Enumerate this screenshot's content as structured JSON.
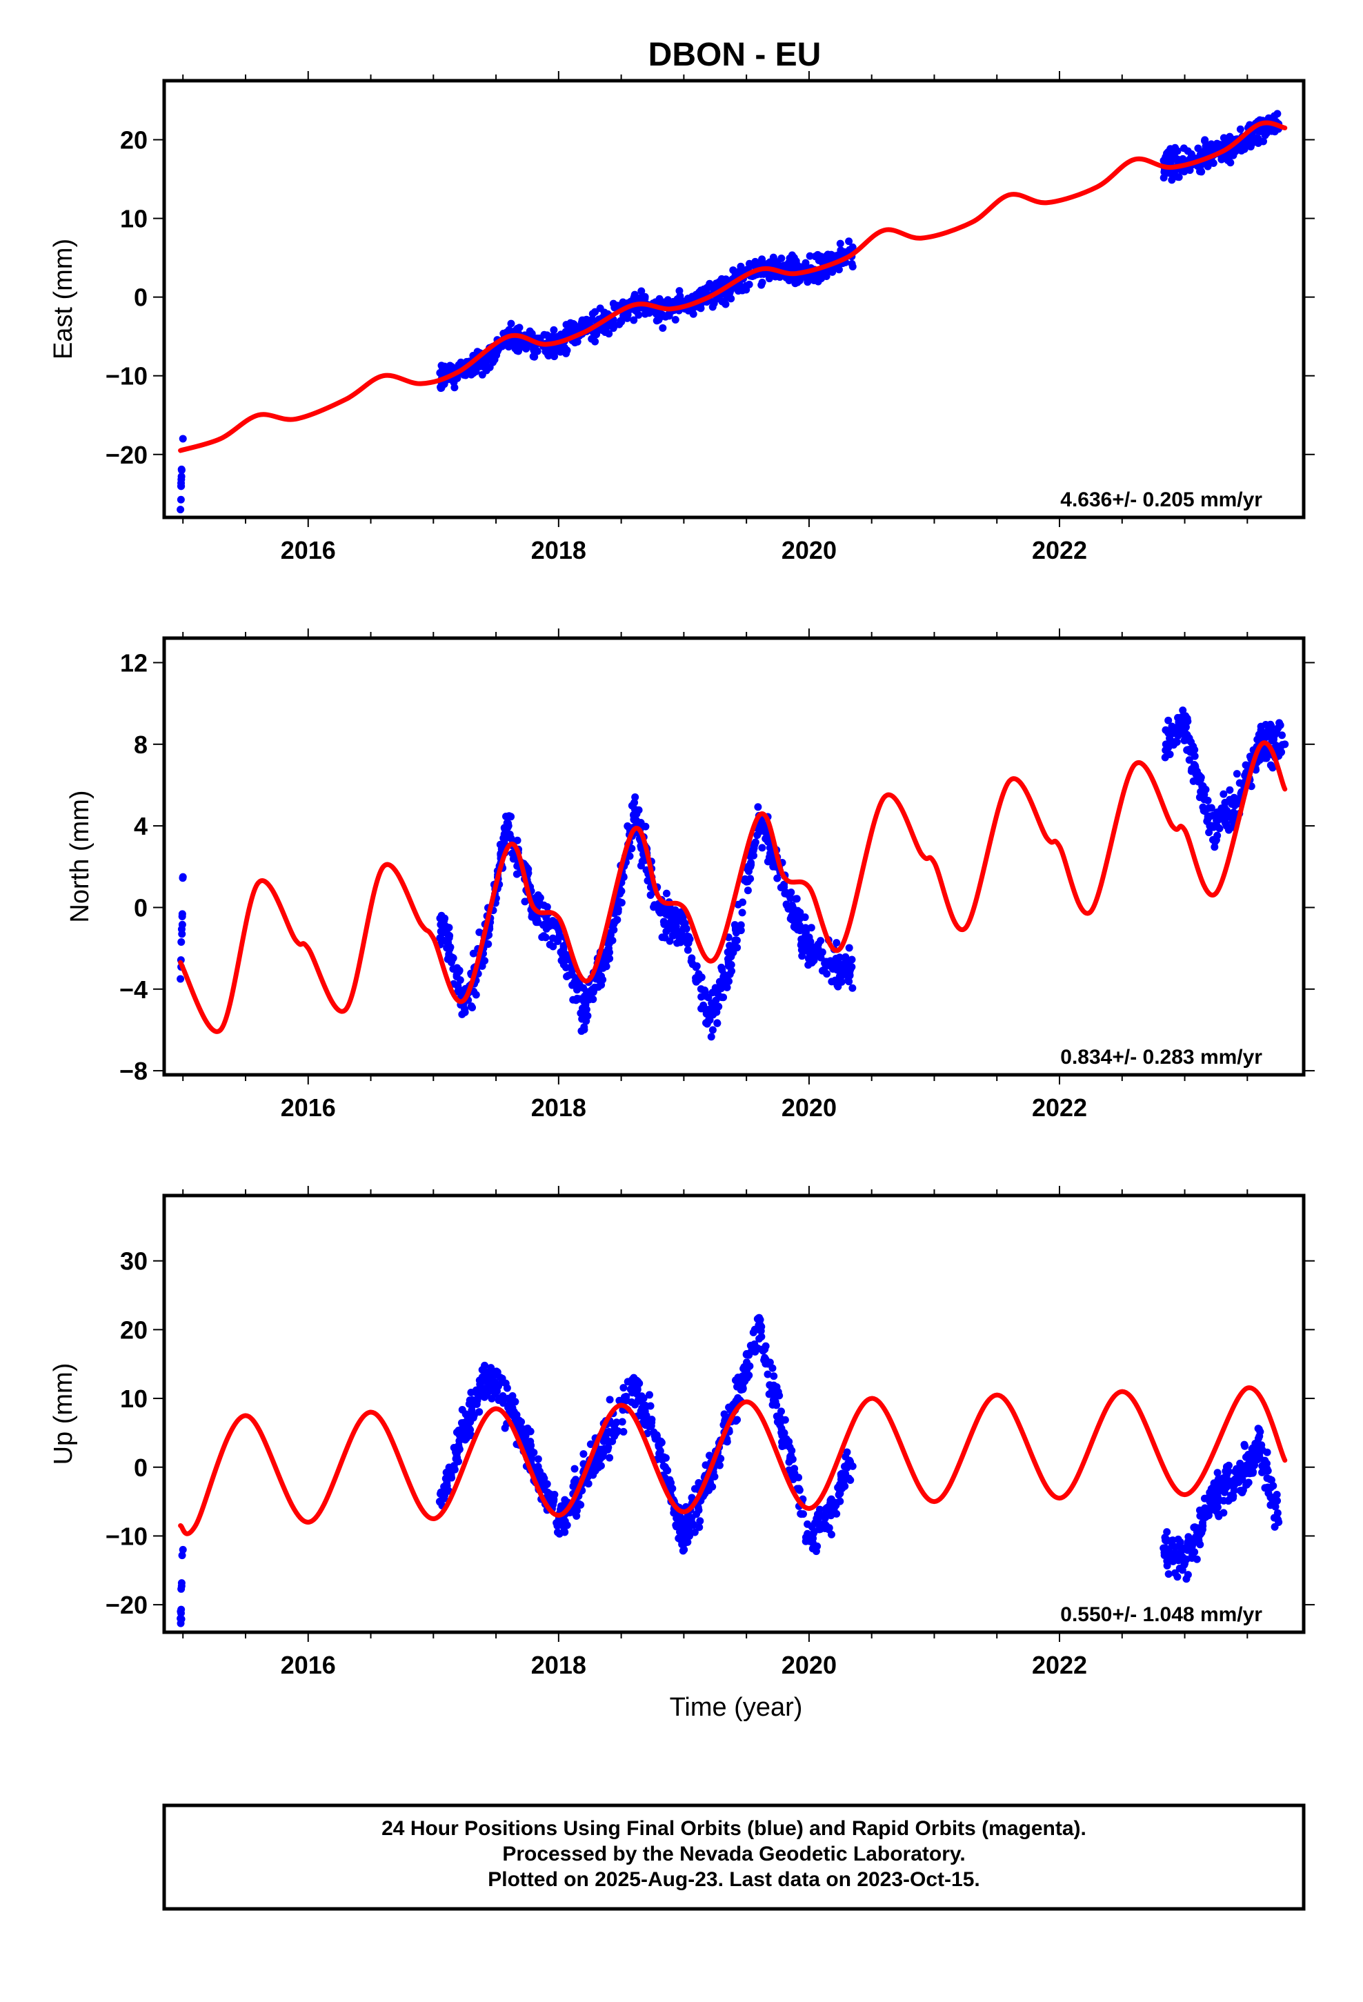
{
  "title": "DBON - EU",
  "xlabel": "Time (year)",
  "footer": [
    "24 Hour Positions Using Final Orbits (blue) and Rapid Orbits (magenta).",
    "Processed by the Nevada Geodetic Laboratory.",
    "Plotted on 2025-Aug-23. Last data on 2023-Oct-15."
  ],
  "colors": {
    "final_orbits": "#0000ff",
    "rapid_orbits": "#ff00ff",
    "model": "#ff0000"
  },
  "chart_data": [
    {
      "type": "scatter",
      "ylabel": "East (mm)",
      "rate_text": "4.636+/- 0.205 mm/yr",
      "xlim": [
        2014.85,
        2023.95
      ],
      "ylim": [
        -28,
        27.5
      ],
      "xticks": [
        2016,
        2018,
        2020,
        2022
      ],
      "yticks": [
        -20,
        -10,
        0,
        10,
        20
      ],
      "series": [
        {
          "kind": "points",
          "color": "#0000ff",
          "x": [
            2014.98,
            2014.99,
            2015.0,
            2017.1,
            2017.2,
            2017.3,
            2017.4,
            2017.5,
            2017.6,
            2017.7,
            2017.8,
            2017.9,
            2018.0,
            2018.2,
            2018.4,
            2018.6,
            2018.8,
            2019.0,
            2019.2,
            2019.4,
            2019.6,
            2019.8,
            2020.0,
            2020.2,
            2020.3,
            2022.85,
            2023.0,
            2023.2,
            2023.4,
            2023.6,
            2023.75
          ],
          "y": [
            -27,
            -22,
            -18,
            -10,
            -9.5,
            -9,
            -8,
            -6.5,
            -5,
            -5.5,
            -6,
            -6,
            -5.5,
            -4,
            -3,
            -1,
            -1.5,
            -1,
            0,
            1.5,
            3.5,
            4,
            3,
            4.5,
            5.5,
            17,
            17,
            18,
            19,
            21.5,
            22
          ]
        },
        {
          "kind": "line",
          "color": "#ff0000",
          "x": [
            2014.98,
            2015.3,
            2015.6,
            2015.9,
            2016.3,
            2016.6,
            2016.9,
            2017.2,
            2017.6,
            2017.9,
            2018.2,
            2018.6,
            2018.9,
            2019.2,
            2019.6,
            2019.9,
            2020.3,
            2020.6,
            2020.9,
            2021.3,
            2021.6,
            2021.9,
            2022.3,
            2022.6,
            2022.9,
            2023.3,
            2023.6,
            2023.8
          ],
          "y": [
            -19.5,
            -18,
            -15,
            -15.5,
            -13,
            -10,
            -11,
            -9.5,
            -5,
            -6,
            -4.5,
            -1,
            -1.5,
            0,
            3.5,
            3,
            5,
            8.5,
            7.5,
            9.5,
            13,
            12,
            14,
            17.5,
            16.5,
            18.5,
            22,
            21.5
          ]
        }
      ]
    },
    {
      "type": "scatter",
      "ylabel": "North (mm)",
      "rate_text": "0.834+/- 0.283 mm/yr",
      "xlim": [
        2014.85,
        2023.95
      ],
      "ylim": [
        -8.2,
        13.2
      ],
      "xticks": [
        2016,
        2018,
        2020,
        2022
      ],
      "yticks": [
        -8,
        -4,
        0,
        4,
        8,
        12
      ],
      "series": [
        {
          "kind": "points",
          "color": "#0000ff",
          "x": [
            2014.98,
            2015.0,
            2017.1,
            2017.25,
            2017.4,
            2017.6,
            2017.8,
            2018.0,
            2018.2,
            2018.4,
            2018.6,
            2018.8,
            2019.0,
            2019.2,
            2019.4,
            2019.6,
            2019.8,
            2020.0,
            2020.2,
            2020.3,
            2022.85,
            2023.0,
            2023.2,
            2023.4,
            2023.6,
            2023.8
          ],
          "y": [
            -3.5,
            1.5,
            -1,
            -5,
            -2,
            4,
            0,
            -1.5,
            -5,
            -2,
            4.5,
            0,
            -1,
            -5.5,
            -2,
            4.5,
            1,
            -2,
            -3,
            -3,
            8,
            9,
            4,
            5,
            8,
            8
          ]
        },
        {
          "kind": "line",
          "color": "#ff0000",
          "x": [
            2014.98,
            2015.3,
            2015.6,
            2015.9,
            2016.0,
            2016.3,
            2016.6,
            2016.9,
            2017.0,
            2017.25,
            2017.6,
            2017.8,
            2018.0,
            2018.25,
            2018.6,
            2018.8,
            2019.0,
            2019.25,
            2019.6,
            2019.8,
            2020.0,
            2020.25,
            2020.6,
            2020.9,
            2021.0,
            2021.25,
            2021.6,
            2021.9,
            2022.0,
            2022.25,
            2022.6,
            2022.9,
            2023.0,
            2023.25,
            2023.6,
            2023.8
          ],
          "y": [
            -2.7,
            -6,
            1.2,
            -1.6,
            -2,
            -5,
            2,
            -0.8,
            -1.5,
            -4.5,
            3,
            0,
            -0.5,
            -3.5,
            3.8,
            0.5,
            0,
            -2.5,
            4.5,
            1.5,
            1,
            -2,
            5.4,
            2.6,
            2.2,
            -1,
            6.2,
            3.4,
            3,
            -0.2,
            7,
            4,
            3.8,
            0.7,
            7.9,
            5.8
          ]
        }
      ]
    },
    {
      "type": "scatter",
      "ylabel": "Up (mm)",
      "rate_text": "0.550+/- 1.048 mm/yr",
      "xlim": [
        2014.85,
        2023.95
      ],
      "ylim": [
        -24,
        39.5
      ],
      "xticks": [
        2016,
        2018,
        2020,
        2022
      ],
      "yticks": [
        -20,
        -10,
        0,
        10,
        20,
        30
      ],
      "series": [
        {
          "kind": "points",
          "color": "#0000ff",
          "x": [
            2014.98,
            2015.0,
            2017.05,
            2017.2,
            2017.4,
            2017.6,
            2017.8,
            2018.0,
            2018.2,
            2018.4,
            2018.6,
            2018.8,
            2019.0,
            2019.2,
            2019.4,
            2019.6,
            2019.8,
            2020.0,
            2020.2,
            2020.3,
            2022.85,
            2023.0,
            2023.2,
            2023.4,
            2023.6,
            2023.75
          ],
          "y": [
            -22,
            -12,
            -5,
            3,
            13,
            10,
            0,
            -8,
            -2,
            5,
            12,
            3,
            -10,
            -2,
            9,
            20,
            5,
            -10,
            -6,
            0,
            -12,
            -14,
            -5,
            -2,
            3,
            -8
          ]
        },
        {
          "kind": "line",
          "color": "#ff0000",
          "x": [
            2014.98,
            2015.1,
            2015.5,
            2016.0,
            2016.5,
            2017.0,
            2017.5,
            2018.0,
            2018.5,
            2019.0,
            2019.5,
            2020.0,
            2020.5,
            2021.0,
            2021.5,
            2022.0,
            2022.5,
            2023.0,
            2023.5,
            2023.8
          ],
          "y": [
            -8.5,
            -8.5,
            7.5,
            -8,
            8,
            -7.5,
            8.5,
            -7,
            9,
            -6.5,
            9.5,
            -6,
            10,
            -5,
            10.5,
            -4.5,
            11,
            -4,
            11.5,
            1
          ]
        }
      ]
    }
  ]
}
